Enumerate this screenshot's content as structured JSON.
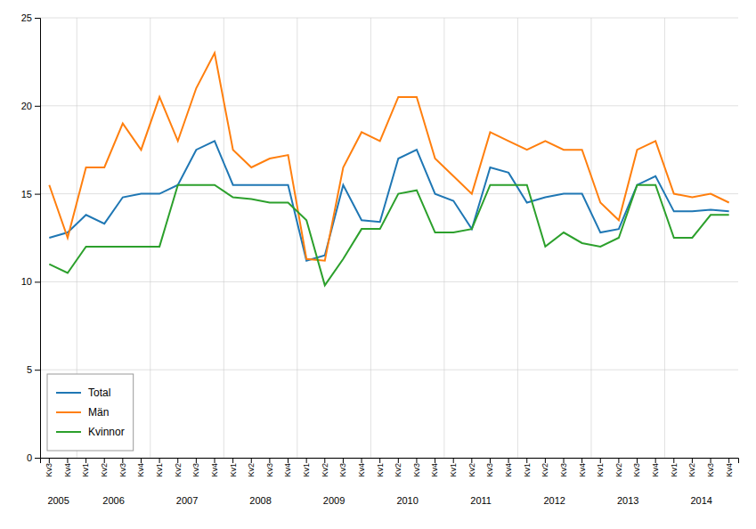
{
  "chart_data": {
    "type": "line",
    "categories": [
      "Kv3",
      "Kv4",
      "Kv1",
      "Kv2",
      "Kv3",
      "Kv4",
      "Kv1",
      "Kv2",
      "Kv3",
      "Kv4",
      "Kv1",
      "Kv2",
      "Kv3",
      "Kv4",
      "Kv1",
      "Kv2",
      "Kv3",
      "Kv4",
      "Kv1",
      "Kv2",
      "Kv3",
      "Kv4",
      "Kv1",
      "Kv2",
      "Kv3",
      "Kv4",
      "Kv1",
      "Kv2",
      "Kv3",
      "Kv4",
      "Kv1",
      "Kv2",
      "Kv3",
      "Kv4",
      "Kv1",
      "Kv2",
      "Kv3",
      "Kv4"
    ],
    "annotations": [
      "2005",
      "2006",
      "2007",
      "2008",
      "2009",
      "2010",
      "2011",
      "2012",
      "2013",
      "2014"
    ],
    "series": [
      {
        "name": "Total",
        "values": [
          12.5,
          12.8,
          13.8,
          13.3,
          14.8,
          15.0,
          15.0,
          15.5,
          17.5,
          18.0,
          15.5,
          15.5,
          15.5,
          15.5,
          11.2,
          11.5,
          15.5,
          13.5,
          13.4,
          17.0,
          17.5,
          15.0,
          14.6,
          13.0,
          16.5,
          16.2,
          14.5,
          14.8,
          15.0,
          15.0,
          12.8,
          13.0,
          15.5,
          16.0,
          14.0,
          14.0,
          14.1,
          14.0
        ]
      },
      {
        "name": "Män",
        "values": [
          15.5,
          12.5,
          16.5,
          16.5,
          19.0,
          17.5,
          20.5,
          18.0,
          21.0,
          23.0,
          17.5,
          16.5,
          17.0,
          17.2,
          11.3,
          11.2,
          16.5,
          18.5,
          18.0,
          20.5,
          20.5,
          17.0,
          16.0,
          15.0,
          18.5,
          18.0,
          17.5,
          18.0,
          17.5,
          17.5,
          14.5,
          13.5,
          17.5,
          18.0,
          15.0,
          14.8,
          15.0,
          14.5
        ]
      },
      {
        "name": "Kvinnor",
        "values": [
          11.0,
          10.5,
          12.0,
          12.0,
          12.0,
          12.0,
          12.0,
          15.5,
          15.5,
          15.5,
          14.8,
          14.7,
          14.5,
          14.5,
          13.5,
          9.8,
          11.3,
          13.0,
          13.0,
          15.0,
          15.2,
          12.8,
          12.8,
          13.0,
          15.5,
          15.5,
          15.5,
          12.0,
          12.8,
          12.2,
          12.0,
          12.5,
          15.5,
          15.5,
          12.5,
          12.5,
          13.8,
          13.8
        ]
      }
    ],
    "ylim": [
      0,
      25
    ],
    "yticks": [
      0,
      5,
      10,
      15,
      20,
      25
    ],
    "grid": true,
    "legend": "lower left"
  }
}
